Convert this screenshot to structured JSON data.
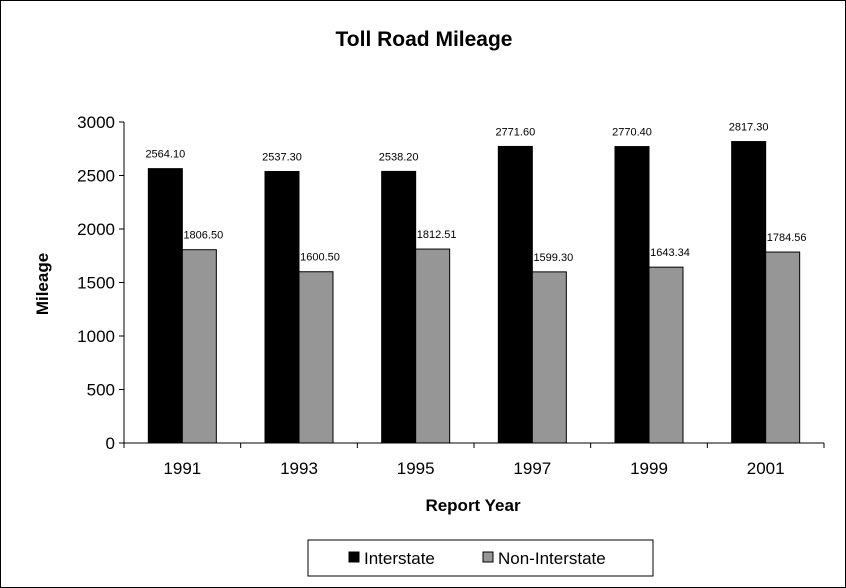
{
  "chart_data": {
    "type": "bar",
    "title": "Toll Road Mileage",
    "xlabel": "Report Year",
    "ylabel": "Mileage",
    "categories": [
      "1991",
      "1993",
      "1995",
      "1997",
      "1999",
      "2001"
    ],
    "ylim": [
      0,
      3000
    ],
    "yticks": [
      "0",
      "500",
      "1000",
      "1500",
      "2000",
      "2500",
      "3000"
    ],
    "grid": false,
    "legend_position": "bottom",
    "series": [
      {
        "name": "Interstate",
        "color": "#000000",
        "values": [
          2564.1,
          2537.3,
          2538.2,
          2771.6,
          2770.4,
          2817.3
        ],
        "labels": [
          "2564.10",
          "2537.30",
          "2538.20",
          "2771.60",
          "2770.40",
          "2817.30"
        ]
      },
      {
        "name": "Non-Interstate",
        "color": "#969696",
        "values": [
          1806.5,
          1600.5,
          1812.51,
          1599.3,
          1643.34,
          1784.56
        ],
        "labels": [
          "1806.50",
          "1600.50",
          "1812.51",
          "1599.30",
          "1643.34",
          "1784.56"
        ]
      }
    ]
  }
}
